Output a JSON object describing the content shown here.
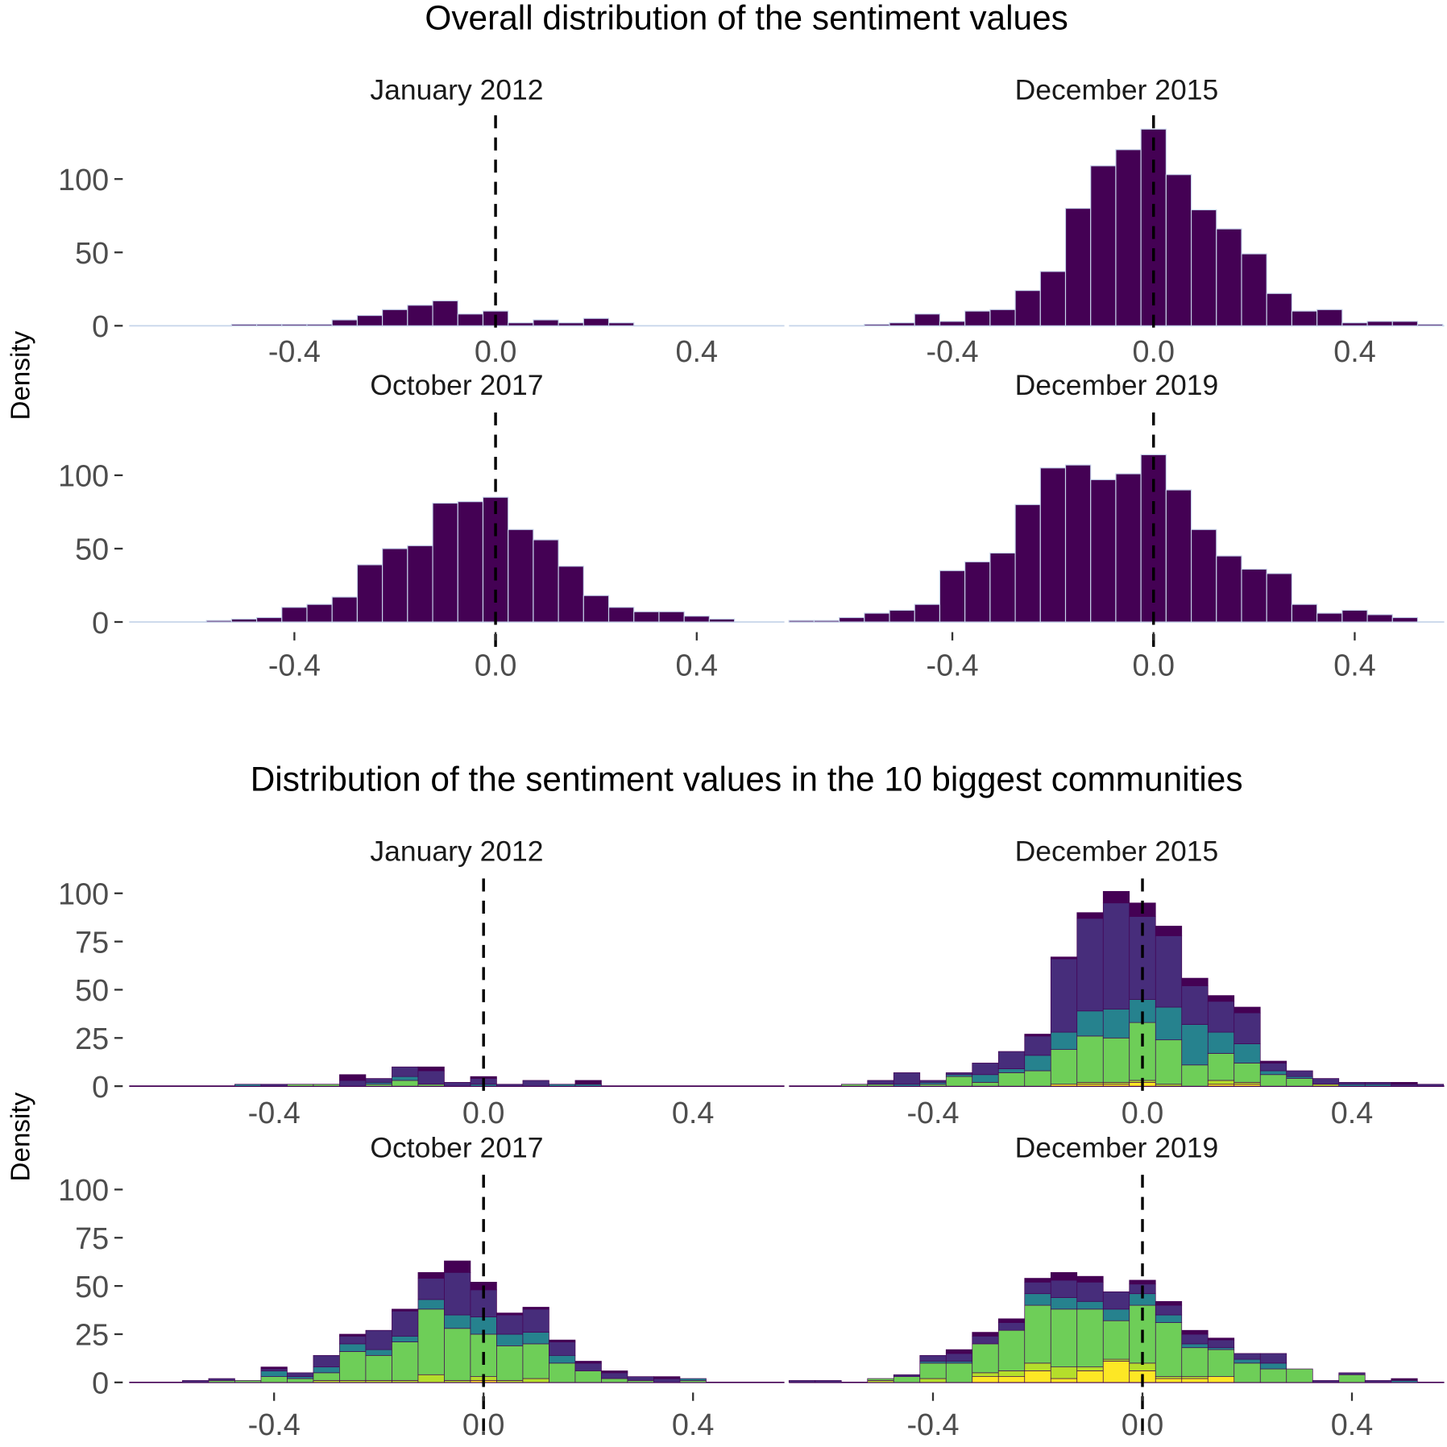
{
  "chart_data": [
    {
      "type": "bar",
      "title": "Overall distribution of the sentiment values",
      "ylabel": "Density",
      "xlabel": "",
      "xlim": [
        -0.73,
        0.58
      ],
      "ylim": [
        0,
        143
      ],
      "xticks": [
        "-0.4",
        "0.0",
        "0.4"
      ],
      "yticks": [
        "0",
        "50",
        "100"
      ],
      "reference_line": {
        "x": 0,
        "style": "dashed"
      },
      "bin_width": 0.05,
      "bar_color": "#440154",
      "bar_outline": "#c6d4ea",
      "panels": [
        {
          "title": "January 2012",
          "x": [
            -0.5,
            -0.45,
            -0.4,
            -0.35,
            -0.3,
            -0.25,
            -0.2,
            -0.15,
            -0.1,
            -0.05,
            0,
            0.05,
            0.1,
            0.15,
            0.2,
            0.25
          ],
          "values": [
            1,
            1,
            1,
            1,
            4,
            7,
            11,
            14,
            17,
            8,
            10,
            2,
            4,
            2,
            5,
            2
          ]
        },
        {
          "title": "December 2015",
          "x": [
            -0.55,
            -0.5,
            -0.45,
            -0.4,
            -0.35,
            -0.3,
            -0.25,
            -0.2,
            -0.15,
            -0.1,
            -0.05,
            0,
            0.05,
            0.1,
            0.15,
            0.2,
            0.25,
            0.3,
            0.35,
            0.4,
            0.45,
            0.5,
            0.55
          ],
          "values": [
            1,
            2,
            8,
            3,
            10,
            11,
            24,
            37,
            80,
            109,
            120,
            134,
            103,
            79,
            66,
            49,
            22,
            10,
            11,
            2,
            3,
            3,
            1
          ]
        },
        {
          "title": "October 2017",
          "x": [
            -0.55,
            -0.5,
            -0.45,
            -0.4,
            -0.35,
            -0.3,
            -0.25,
            -0.2,
            -0.15,
            -0.1,
            -0.05,
            0,
            0.05,
            0.1,
            0.15,
            0.2,
            0.25,
            0.3,
            0.35,
            0.4,
            0.45
          ],
          "values": [
            1,
            2,
            3,
            10,
            12,
            17,
            39,
            50,
            52,
            81,
            82,
            85,
            63,
            56,
            38,
            18,
            10,
            7,
            7,
            4,
            2
          ]
        },
        {
          "title": "December 2019",
          "x": [
            -0.7,
            -0.65,
            -0.6,
            -0.55,
            -0.5,
            -0.45,
            -0.4,
            -0.35,
            -0.3,
            -0.25,
            -0.2,
            -0.15,
            -0.1,
            -0.05,
            0,
            0.05,
            0.1,
            0.15,
            0.2,
            0.25,
            0.3,
            0.35,
            0.4,
            0.45,
            0.5
          ],
          "values": [
            1,
            1,
            3,
            6,
            8,
            12,
            35,
            41,
            47,
            80,
            105,
            107,
            97,
            101,
            114,
            90,
            63,
            45,
            36,
            33,
            12,
            6,
            8,
            5,
            3
          ]
        }
      ]
    },
    {
      "type": "bar",
      "stacked": true,
      "title": "Distribution of the sentiment values in the 10 biggest communities",
      "ylabel": "Density",
      "xlabel": "",
      "xlim": [
        -0.68,
        0.58
      ],
      "ylim": [
        0,
        108
      ],
      "xticks": [
        "-0.4",
        "0.0",
        "0.4"
      ],
      "yticks": [
        "0",
        "25",
        "50",
        "75",
        "100"
      ],
      "reference_line": {
        "x": 0,
        "style": "dashed"
      },
      "bin_width": 0.05,
      "layer_colors": [
        "#fde725",
        "#b5de2b",
        "#6ece58",
        "#26828e",
        "#472d7b",
        "#440154"
      ],
      "panels": [
        {
          "title": "January 2012",
          "x": [
            -0.45,
            -0.4,
            -0.35,
            -0.3,
            -0.25,
            -0.2,
            -0.15,
            -0.1,
            -0.05,
            0,
            0.05,
            0.1,
            0.15,
            0.2
          ],
          "series": [
            {
              "values": [
                0,
                0,
                0,
                0,
                0,
                0,
                0,
                0,
                0,
                0,
                0,
                0,
                0,
                0
              ]
            },
            {
              "values": [
                0,
                0,
                0,
                0,
                0,
                0,
                0,
                0,
                0,
                0,
                0,
                0,
                0,
                0
              ]
            },
            {
              "values": [
                0,
                0,
                1,
                1,
                0,
                1,
                3,
                1,
                0,
                0,
                0,
                0,
                0,
                0
              ]
            },
            {
              "values": [
                1,
                0,
                0,
                0,
                0,
                1,
                2,
                0,
                0,
                1,
                0,
                0,
                1,
                1
              ]
            },
            {
              "values": [
                0,
                1,
                0,
                0,
                3,
                2,
                5,
                7,
                2,
                3,
                1,
                3,
                0,
                0
              ]
            },
            {
              "values": [
                0,
                0,
                0,
                0,
                3,
                0,
                0,
                2,
                0,
                1,
                0,
                0,
                0,
                2
              ]
            }
          ]
        },
        {
          "title": "December 2015",
          "x": [
            -0.55,
            -0.5,
            -0.45,
            -0.4,
            -0.35,
            -0.3,
            -0.25,
            -0.2,
            -0.15,
            -0.1,
            -0.05,
            0,
            0.05,
            0.1,
            0.15,
            0.2,
            0.25,
            0.3,
            0.35,
            0.4,
            0.45,
            0.5,
            0.55
          ],
          "series": [
            {
              "values": [
                0,
                0,
                0,
                0,
                0,
                0,
                0,
                0,
                1,
                1,
                1,
                2,
                0,
                0,
                1,
                1,
                0,
                0,
                0,
                0,
                0,
                0,
                0
              ]
            },
            {
              "values": [
                0,
                0,
                0,
                0,
                0,
                0,
                0,
                0,
                0,
                1,
                1,
                1,
                1,
                0,
                2,
                1,
                0,
                0,
                1,
                0,
                0,
                0,
                0
              ]
            },
            {
              "values": [
                1,
                1,
                0,
                1,
                5,
                2,
                7,
                8,
                18,
                24,
                23,
                30,
                23,
                11,
                14,
                10,
                6,
                4,
                0,
                0,
                0,
                0,
                0
              ]
            },
            {
              "values": [
                0,
                0,
                1,
                1,
                1,
                4,
                2,
                8,
                9,
                13,
                15,
                12,
                17,
                21,
                11,
                10,
                2,
                1,
                0,
                1,
                1,
                0,
                0
              ]
            },
            {
              "values": [
                0,
                2,
                6,
                1,
                1,
                6,
                9,
                10,
                38,
                48,
                55,
                43,
                37,
                20,
                16,
                16,
                4,
                3,
                3,
                1,
                1,
                1,
                1
              ]
            },
            {
              "values": [
                0,
                0,
                0,
                0,
                0,
                0,
                0,
                1,
                1,
                3,
                6,
                7,
                5,
                4,
                3,
                3,
                1,
                0,
                0,
                0,
                0,
                1,
                0
              ]
            }
          ]
        },
        {
          "title": "October 2017",
          "x": [
            -0.55,
            -0.5,
            -0.45,
            -0.4,
            -0.35,
            -0.3,
            -0.25,
            -0.2,
            -0.15,
            -0.1,
            -0.05,
            0,
            0.05,
            0.1,
            0.15,
            0.2,
            0.25,
            0.3,
            0.35,
            0.4
          ],
          "series": [
            {
              "values": [
                0,
                0,
                0,
                0,
                0,
                0,
                0,
                0,
                0,
                0,
                0,
                1,
                0,
                0,
                0,
                0,
                0,
                0,
                0,
                0
              ]
            },
            {
              "values": [
                0,
                0,
                0,
                0,
                0,
                1,
                1,
                1,
                1,
                4,
                1,
                2,
                1,
                2,
                0,
                0,
                0,
                0,
                0,
                0
              ]
            },
            {
              "values": [
                0,
                1,
                1,
                3,
                2,
                4,
                15,
                13,
                20,
                34,
                27,
                22,
                18,
                18,
                10,
                6,
                2,
                1,
                0,
                1
              ]
            },
            {
              "values": [
                0,
                0,
                0,
                3,
                1,
                3,
                4,
                3,
                3,
                5,
                7,
                9,
                6,
                6,
                4,
                0,
                0,
                0,
                0,
                1
              ]
            },
            {
              "values": [
                1,
                1,
                0,
                1,
                2,
                6,
                4,
                10,
                13,
                11,
                22,
                14,
                10,
                12,
                7,
                4,
                3,
                2,
                2,
                0
              ]
            },
            {
              "values": [
                0,
                0,
                0,
                1,
                0,
                0,
                1,
                0,
                1,
                3,
                6,
                4,
                1,
                1,
                1,
                1,
                1,
                0,
                1,
                0
              ]
            }
          ]
        },
        {
          "title": "December 2019",
          "x": [
            -0.65,
            -0.6,
            -0.55,
            -0.5,
            -0.45,
            -0.4,
            -0.35,
            -0.3,
            -0.25,
            -0.2,
            -0.15,
            -0.1,
            -0.05,
            0,
            0.05,
            0.1,
            0.15,
            0.2,
            0.25,
            0.3,
            0.35,
            0.4,
            0.45,
            0.5
          ],
          "series": [
            {
              "values": [
                0,
                0,
                0,
                0,
                0,
                0,
                0,
                3,
                3,
                6,
                2,
                6,
                11,
                6,
                2,
                2,
                3,
                0,
                0,
                0,
                0,
                0,
                0,
                0
              ]
            },
            {
              "values": [
                0,
                0,
                0,
                1,
                0,
                2,
                0,
                2,
                3,
                4,
                6,
                2,
                1,
                4,
                1,
                1,
                0,
                0,
                0,
                0,
                0,
                0,
                0,
                0
              ]
            },
            {
              "values": [
                0,
                0,
                0,
                1,
                3,
                8,
                10,
                15,
                21,
                30,
                30,
                30,
                20,
                30,
                28,
                15,
                14,
                10,
                7,
                7,
                0,
                4,
                0,
                0
              ]
            },
            {
              "values": [
                0,
                0,
                0,
                0,
                0,
                1,
                1,
                0,
                0,
                6,
                6,
                4,
                6,
                6,
                4,
                2,
                1,
                2,
                3,
                0,
                0,
                0,
                0,
                1
              ]
            },
            {
              "values": [
                1,
                1,
                0,
                0,
                1,
                3,
                4,
                4,
                4,
                6,
                9,
                10,
                9,
                5,
                5,
                5,
                4,
                3,
                5,
                0,
                1,
                1,
                1,
                0
              ]
            },
            {
              "values": [
                0,
                0,
                0,
                0,
                0,
                0,
                2,
                2,
                2,
                2,
                4,
                3,
                0,
                2,
                2,
                2,
                1,
                0,
                0,
                0,
                0,
                0,
                0,
                1
              ]
            }
          ]
        }
      ]
    }
  ]
}
